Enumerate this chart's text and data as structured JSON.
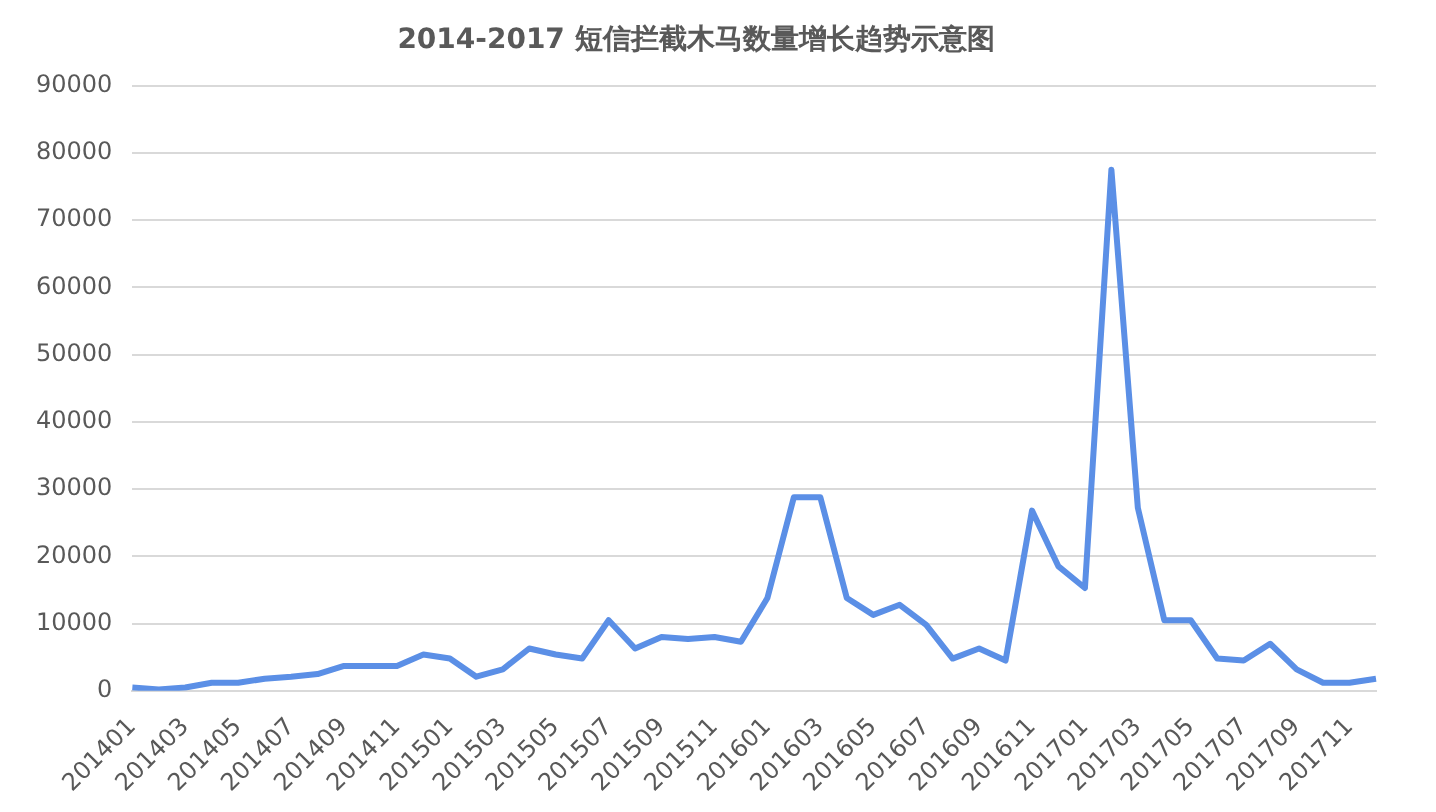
{
  "chart_data": {
    "type": "line",
    "title": "2014-2017 短信拦截木马数量增长趋势示意图",
    "categories": [
      "201401",
      null,
      "201403",
      null,
      "201405",
      null,
      "201407",
      null,
      "201409",
      null,
      "201411",
      null,
      "201501",
      null,
      "201503",
      null,
      "201505",
      null,
      "201507",
      null,
      "201509",
      null,
      "201511",
      null,
      "201601",
      null,
      "201603",
      null,
      "201605",
      null,
      "201607",
      null,
      "201609",
      null,
      "201611",
      null,
      "201701",
      null,
      "201703",
      null,
      "201705",
      null,
      "201707",
      null,
      "201709",
      null,
      "201711",
      null
    ],
    "series": [
      {
        "color": "#5b8fe6",
        "values": [
          500,
          200,
          500,
          1200,
          1200,
          1800,
          2100,
          2500,
          3700,
          3700,
          3700,
          5400,
          4800,
          2100,
          3200,
          6300,
          5400,
          4800,
          10500,
          6300,
          8000,
          7700,
          8000,
          7300,
          13800,
          28800,
          28800,
          13800,
          11300,
          12800,
          9800,
          4800,
          6300,
          4500,
          26800,
          18500,
          15300,
          77500,
          27200,
          10500,
          10500,
          4800,
          4500,
          7000,
          3200,
          1200,
          1200,
          1800
        ]
      }
    ],
    "ylim": [
      0,
      90000
    ],
    "yticks": [
      0,
      10000,
      20000,
      30000,
      40000,
      50000,
      60000,
      70000,
      80000,
      90000
    ],
    "grid": "y",
    "legend": false,
    "marker": "none",
    "line_style": "solid"
  }
}
